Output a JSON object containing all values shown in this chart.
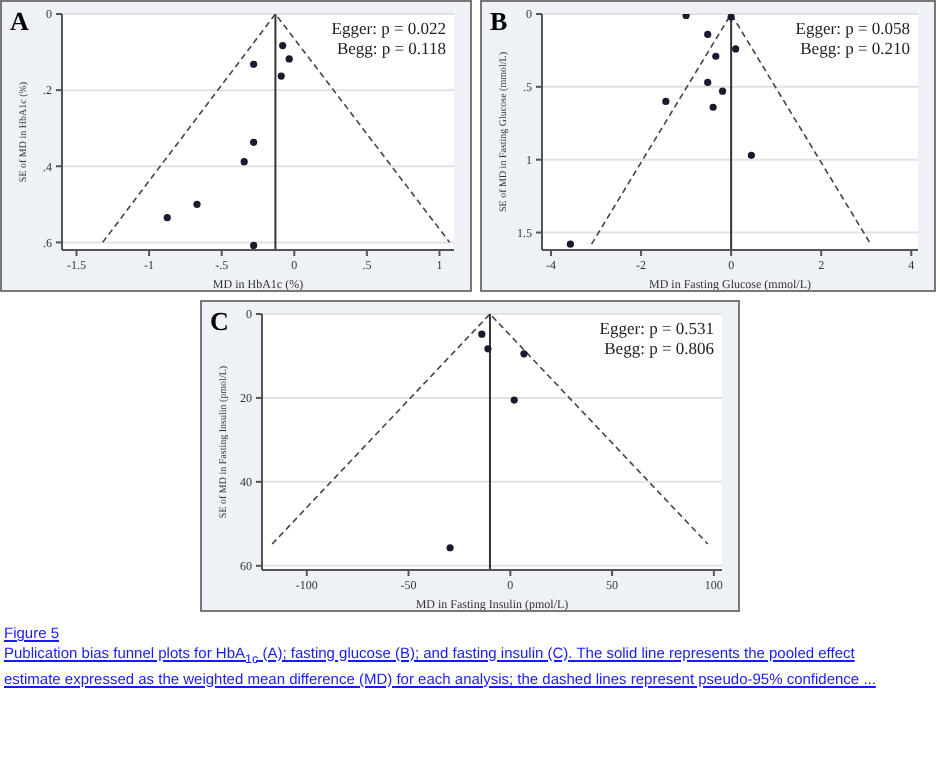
{
  "chart_data": [
    {
      "type": "scatter",
      "title": "A",
      "xlabel": "MD in HbA1c (%)",
      "ylabel": "SE of MD in HbA1c (%)",
      "xlim": [
        -1.6,
        1.1
      ],
      "ylim": [
        0.62,
        0
      ],
      "xticks": [
        -1.5,
        -1,
        {
          "value": -0.5,
          "label": "-.5"
        },
        0,
        {
          "value": 0.5,
          "label": ".5"
        },
        1
      ],
      "yticks": [
        0,
        {
          "value": 0.2,
          "label": ".2"
        },
        {
          "value": 0.4,
          "label": ".4"
        },
        {
          "value": 0.6,
          "label": ".6"
        }
      ],
      "grid": "y",
      "series": [
        {
          "marker": "circle",
          "color": "#1a1a2e",
          "x": [
            -0.08,
            -0.035,
            -0.28,
            -0.09,
            -0.28,
            -0.345,
            -0.67,
            -0.875,
            -0.28
          ],
          "values": [
            0.083,
            0.118,
            0.132,
            0.163,
            0.337,
            0.388,
            0.5,
            0.535,
            0.608
          ]
        },
        {
          "type": "line",
          "marker": "none",
          "line_style": "dashed",
          "color": "#444444",
          "x": [
            -1.32,
            -0.13,
            1.07
          ],
          "values": [
            0.6,
            0,
            0.6
          ]
        }
      ],
      "ref_lines": [
        {
          "axis": "x",
          "value": -0.13,
          "color": "#333333",
          "line_style": "solid"
        }
      ],
      "annotations": [
        "Egger: p = 0.022",
        "Begg: p = 0.118"
      ]
    },
    {
      "type": "scatter",
      "title": "B",
      "xlabel": "MD in Fasting Glucose (mmol/L)",
      "ylabel": "SE of MD in Fasting Glucose (mmol/L)",
      "xlim": [
        -4.2,
        4.15
      ],
      "ylim": [
        1.62,
        0
      ],
      "xticks": [
        -4,
        -2,
        0,
        2,
        4
      ],
      "yticks": [
        0,
        {
          "value": 0.5,
          "label": ".5"
        },
        1,
        1.5
      ],
      "grid": "y",
      "series": [
        {
          "marker": "circle",
          "color": "#1a1a2e",
          "x": [
            -1.0,
            0,
            -0.52,
            0.1,
            -0.34,
            -0.52,
            -0.19,
            -1.45,
            -0.4,
            0.45,
            -3.57
          ],
          "values": [
            0.01,
            0.02,
            0.14,
            0.24,
            0.29,
            0.47,
            0.53,
            0.6,
            0.64,
            0.97,
            1.58
          ]
        },
        {
          "type": "line",
          "marker": "none",
          "line_style": "dashed",
          "color": "#444444",
          "x": [
            -3.1,
            0,
            3.1
          ],
          "values": [
            1.58,
            0,
            1.58
          ]
        }
      ],
      "ref_lines": [
        {
          "axis": "x",
          "value": 0,
          "color": "#333333",
          "line_style": "solid"
        }
      ],
      "annotations": [
        "Egger: p = 0.058",
        "Begg: p = 0.210"
      ]
    },
    {
      "type": "scatter",
      "title": "C",
      "xlabel": "MD in Fasting Insulin (pmol/L)",
      "ylabel": "SE of MD in Fasting Insulin (pmol/L)",
      "xlim": [
        -122,
        104
      ],
      "ylim": [
        61,
        0
      ],
      "xticks": [
        -100,
        -50,
        0,
        50,
        100
      ],
      "yticks": [
        0,
        20,
        40,
        60
      ],
      "grid": "y",
      "series": [
        {
          "marker": "circle",
          "color": "#1a1a2e",
          "x": [
            -14,
            -11,
            6.7,
            1.9,
            -29.6
          ],
          "values": [
            4.8,
            8.3,
            9.5,
            20.5,
            55.7
          ]
        },
        {
          "type": "line",
          "marker": "none",
          "line_style": "dashed",
          "color": "#444444",
          "x": [
            -117,
            -10,
            97
          ],
          "values": [
            54.8,
            0,
            54.8
          ]
        }
      ],
      "ref_lines": [
        {
          "axis": "x",
          "value": -10,
          "color": "#333333",
          "line_style": "solid"
        }
      ],
      "annotations": [
        "Egger: p = 0.531",
        "Begg: p = 0.806",
        "Figure 5",
        "Publication bias funnel plots for HbA$_{1c}$ (A); fasting glucose (B); and fasting insulin (C). The solid line represents the pooled effect estimate expressed as the weighted mean difference (MD) for each analysis; the dashed lines represent pseudo-95% confidence ..."
      ]
    }
  ]
}
